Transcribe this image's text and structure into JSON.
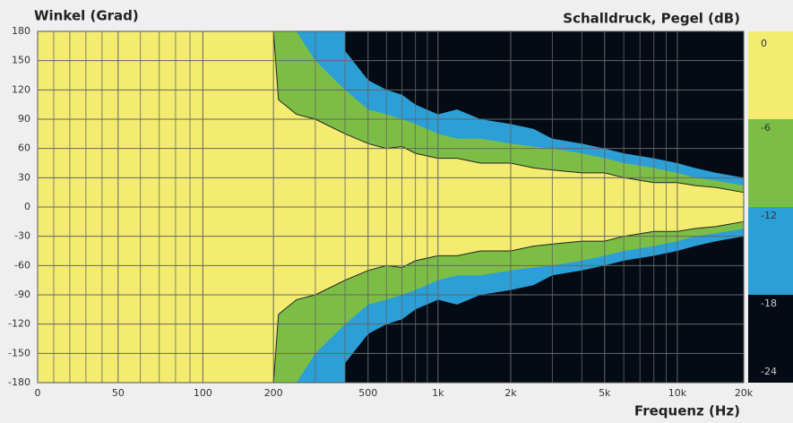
{
  "chart_data": {
    "type": "contour",
    "title": "Schalldruck, Pegel (dB)",
    "y_label": "Winkel (Grad)",
    "x_label": "Frequenz (Hz)",
    "xlim": [
      0,
      20000
    ],
    "ylim": [
      -180,
      180
    ],
    "xticks": [
      0,
      50,
      100,
      200,
      500,
      {
        "value": 1000,
        "label": "1k"
      },
      {
        "value": 2000,
        "label": "2k"
      },
      {
        "value": 5000,
        "label": "5k"
      },
      {
        "value": 10000,
        "label": "10k"
      },
      {
        "value": 20000,
        "label": "20k"
      }
    ],
    "xgrid_minor": [
      10,
      20,
      30,
      40,
      60,
      70,
      80,
      90,
      300,
      400,
      600,
      700,
      800,
      900,
      3000,
      4000,
      6000,
      7000,
      8000,
      9000
    ],
    "yticks": [
      180,
      150,
      120,
      90,
      60,
      30,
      0,
      -30,
      -60,
      -90,
      -120,
      -150,
      -180
    ],
    "grid": true,
    "levels": [
      0,
      -6,
      -12,
      -18,
      -24
    ],
    "level_colors": [
      "#f3ec70",
      "#7cbe45",
      "#2b9fd6",
      "#040b14"
    ],
    "x": [
      200,
      210,
      250,
      300,
      400,
      500,
      600,
      700,
      800,
      1000,
      1200,
      1500,
      2000,
      2500,
      3000,
      4000,
      5000,
      6000,
      8000,
      10000,
      12000,
      15000,
      20000
    ],
    "boundaries": [
      [
        180,
        110,
        95,
        90,
        75,
        65,
        60,
        62,
        55,
        50,
        50,
        45,
        45,
        40,
        38,
        35,
        35,
        30,
        25,
        25,
        22,
        20,
        15
      ],
      [
        null,
        null,
        180,
        150,
        120,
        100,
        95,
        90,
        85,
        75,
        70,
        70,
        65,
        62,
        60,
        55,
        50,
        45,
        40,
        35,
        30,
        27,
        22
      ],
      [
        null,
        null,
        null,
        null,
        160,
        130,
        120,
        115,
        105,
        95,
        100,
        90,
        85,
        80,
        70,
        65,
        60,
        55,
        50,
        45,
        40,
        35,
        30
      ]
    ]
  }
}
